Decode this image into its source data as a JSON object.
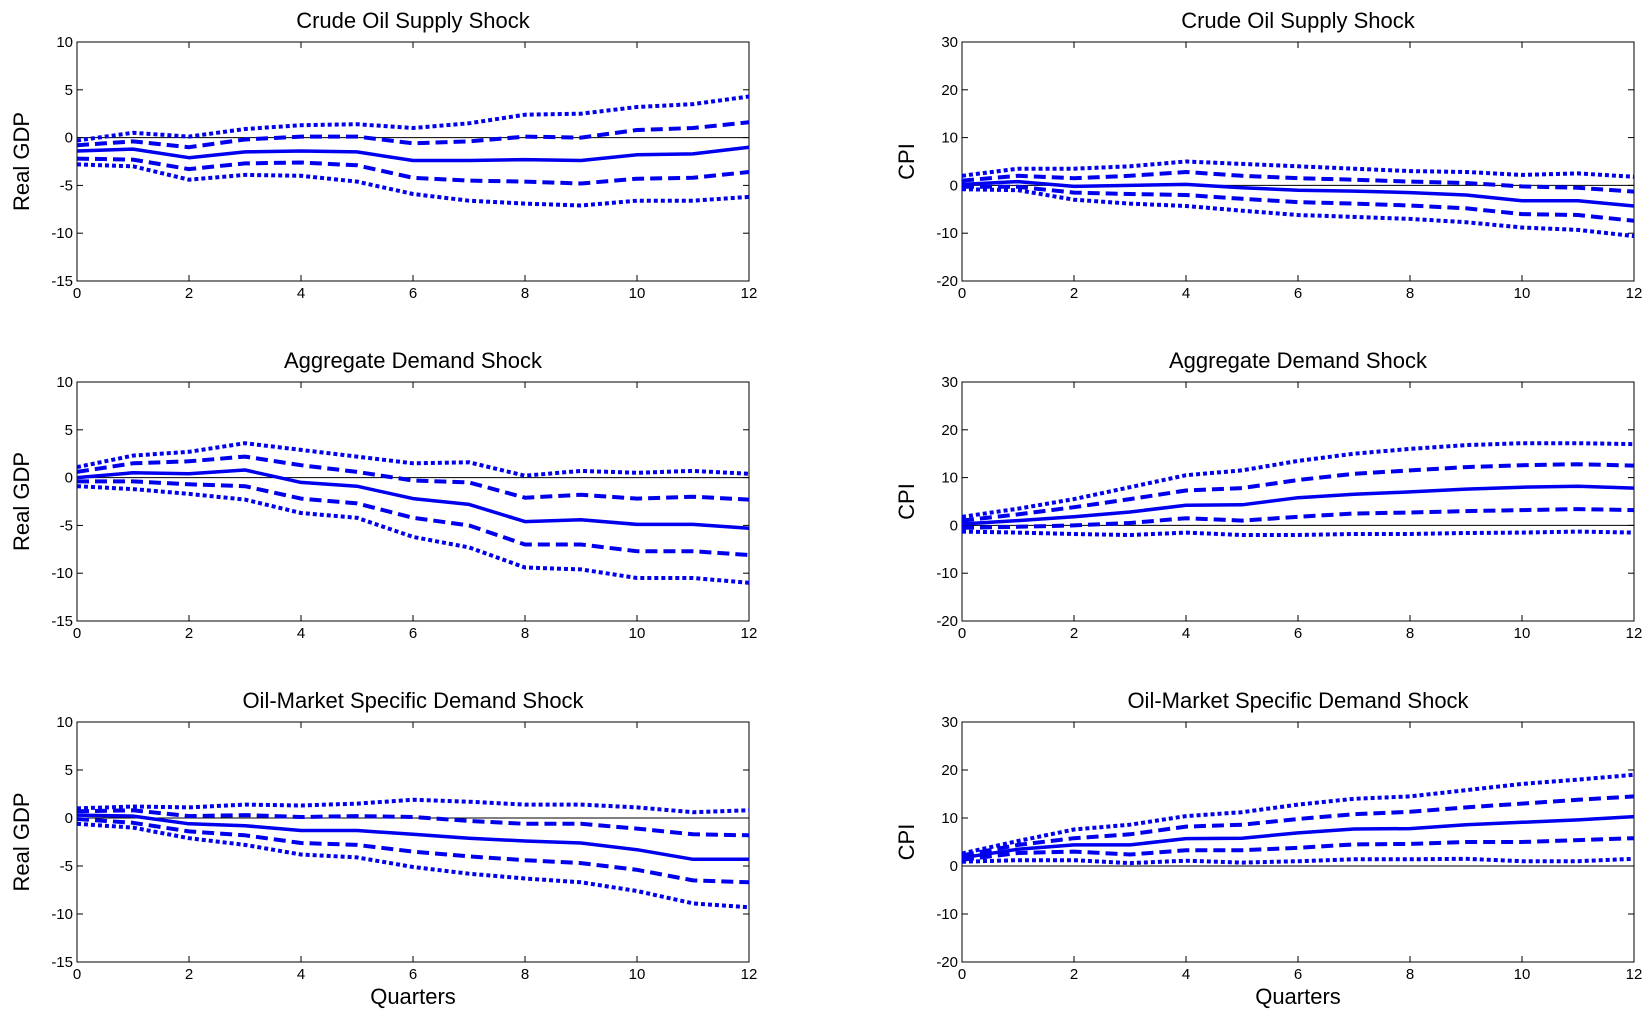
{
  "figure": {
    "xlabel": "Quarters"
  },
  "style": {
    "line_color": "#0000ee",
    "zero_line_color": "#000000",
    "axes_color": "#000000"
  },
  "chart_data": [
    {
      "type": "line",
      "title": "Crude Oil Supply Shock",
      "xlabel": "",
      "ylabel": "Real GDP",
      "xlim": [
        0,
        12
      ],
      "ylim": [
        -15,
        10
      ],
      "xticks": [
        0,
        2,
        4,
        6,
        8,
        10,
        12
      ],
      "yticks": [
        10,
        5,
        0,
        -5,
        -10,
        -15
      ],
      "x": [
        0,
        1,
        2,
        3,
        4,
        5,
        6,
        7,
        8,
        9,
        10,
        11,
        12
      ],
      "series": [
        {
          "style": "dotted",
          "values": [
            -0.3,
            0.5,
            0.1,
            0.9,
            1.3,
            1.4,
            1.0,
            1.5,
            2.4,
            2.5,
            3.2,
            3.5,
            4.3
          ]
        },
        {
          "style": "dashed",
          "values": [
            -0.8,
            -0.4,
            -1.0,
            -0.2,
            0.1,
            0.1,
            -0.6,
            -0.4,
            0.1,
            0.0,
            0.8,
            1.0,
            1.6
          ]
        },
        {
          "style": "solid",
          "values": [
            -1.4,
            -1.2,
            -2.1,
            -1.5,
            -1.4,
            -1.5,
            -2.4,
            -2.4,
            -2.3,
            -2.4,
            -1.8,
            -1.7,
            -1.0
          ]
        },
        {
          "style": "dashed",
          "values": [
            -2.2,
            -2.3,
            -3.3,
            -2.7,
            -2.6,
            -2.9,
            -4.2,
            -4.5,
            -4.6,
            -4.8,
            -4.3,
            -4.2,
            -3.6
          ]
        },
        {
          "style": "dotted",
          "values": [
            -2.8,
            -3.0,
            -4.4,
            -3.9,
            -4.0,
            -4.6,
            -5.9,
            -6.6,
            -6.9,
            -7.1,
            -6.6,
            -6.6,
            -6.2
          ]
        }
      ]
    },
    {
      "type": "line",
      "title": "Crude Oil Supply Shock",
      "xlabel": "",
      "ylabel": "CPI",
      "xlim": [
        0,
        12
      ],
      "ylim": [
        -20,
        30
      ],
      "xticks": [
        0,
        2,
        4,
        6,
        8,
        10,
        12
      ],
      "yticks": [
        30,
        20,
        10,
        0,
        -10,
        -20
      ],
      "x": [
        0,
        1,
        2,
        3,
        4,
        5,
        6,
        7,
        8,
        9,
        10,
        11,
        12
      ],
      "series": [
        {
          "style": "dotted",
          "values": [
            2.0,
            3.5,
            3.5,
            4.0,
            5.0,
            4.5,
            4.0,
            3.5,
            3.0,
            2.8,
            2.2,
            2.5,
            1.8
          ]
        },
        {
          "style": "dashed",
          "values": [
            1.0,
            2.0,
            1.5,
            2.0,
            2.8,
            2.0,
            1.5,
            1.2,
            0.8,
            0.5,
            -0.2,
            -0.5,
            -1.3
          ]
        },
        {
          "style": "solid",
          "values": [
            0.2,
            0.8,
            -0.2,
            0.0,
            0.2,
            -0.5,
            -1.0,
            -1.2,
            -1.5,
            -2.0,
            -3.2,
            -3.2,
            -4.3
          ]
        },
        {
          "style": "dashed",
          "values": [
            -0.3,
            -0.3,
            -1.5,
            -1.8,
            -2.0,
            -2.8,
            -3.5,
            -3.8,
            -4.2,
            -4.8,
            -6.0,
            -6.2,
            -7.4
          ]
        },
        {
          "style": "dotted",
          "values": [
            -0.8,
            -1.0,
            -3.0,
            -3.8,
            -4.3,
            -5.3,
            -6.2,
            -6.6,
            -7.0,
            -7.7,
            -8.8,
            -9.3,
            -10.6
          ]
        }
      ]
    },
    {
      "type": "line",
      "title": "Aggregate Demand Shock",
      "xlabel": "",
      "ylabel": "Real GDP",
      "xlim": [
        0,
        12
      ],
      "ylim": [
        -15,
        10
      ],
      "xticks": [
        0,
        2,
        4,
        6,
        8,
        10,
        12
      ],
      "yticks": [
        10,
        5,
        0,
        -5,
        -10,
        -15
      ],
      "x": [
        0,
        1,
        2,
        3,
        4,
        5,
        6,
        7,
        8,
        9,
        10,
        11,
        12
      ],
      "series": [
        {
          "style": "dotted",
          "values": [
            1.1,
            2.3,
            2.7,
            3.6,
            2.9,
            2.2,
            1.5,
            1.6,
            0.2,
            0.7,
            0.5,
            0.7,
            0.4
          ]
        },
        {
          "style": "dashed",
          "values": [
            0.6,
            1.5,
            1.7,
            2.2,
            1.3,
            0.6,
            -0.3,
            -0.5,
            -2.1,
            -1.8,
            -2.2,
            -2.0,
            -2.3
          ]
        },
        {
          "style": "solid",
          "values": [
            0.0,
            0.5,
            0.4,
            0.8,
            -0.5,
            -0.9,
            -2.2,
            -2.8,
            -4.6,
            -4.4,
            -4.9,
            -4.9,
            -5.3
          ]
        },
        {
          "style": "dashed",
          "values": [
            -0.4,
            -0.4,
            -0.7,
            -0.9,
            -2.2,
            -2.7,
            -4.2,
            -5.0,
            -7.0,
            -7.0,
            -7.7,
            -7.7,
            -8.1
          ]
        },
        {
          "style": "dotted",
          "values": [
            -0.9,
            -1.2,
            -1.7,
            -2.3,
            -3.7,
            -4.2,
            -6.2,
            -7.3,
            -9.4,
            -9.6,
            -10.5,
            -10.5,
            -11.0
          ]
        }
      ]
    },
    {
      "type": "line",
      "title": "Aggregate Demand Shock",
      "xlabel": "",
      "ylabel": "CPI",
      "xlim": [
        0,
        12
      ],
      "ylim": [
        -20,
        30
      ],
      "xticks": [
        0,
        2,
        4,
        6,
        8,
        10,
        12
      ],
      "yticks": [
        30,
        20,
        10,
        0,
        -10,
        -20
      ],
      "x": [
        0,
        1,
        2,
        3,
        4,
        5,
        6,
        7,
        8,
        9,
        10,
        11,
        12
      ],
      "series": [
        {
          "style": "dotted",
          "values": [
            1.8,
            3.5,
            5.5,
            8.0,
            10.5,
            11.5,
            13.5,
            15.0,
            16.0,
            16.8,
            17.2,
            17.2,
            17.0
          ]
        },
        {
          "style": "dashed",
          "values": [
            1.0,
            2.3,
            3.8,
            5.5,
            7.3,
            7.8,
            9.5,
            10.8,
            11.5,
            12.2,
            12.6,
            12.8,
            12.5
          ]
        },
        {
          "style": "solid",
          "values": [
            0.3,
            1.0,
            1.8,
            2.8,
            4.2,
            4.3,
            5.8,
            6.5,
            7.0,
            7.6,
            8.0,
            8.2,
            7.8
          ]
        },
        {
          "style": "dashed",
          "values": [
            -0.5,
            -0.3,
            0.0,
            0.5,
            1.5,
            1.0,
            1.8,
            2.5,
            2.7,
            3.0,
            3.2,
            3.4,
            3.2
          ]
        },
        {
          "style": "dotted",
          "values": [
            -1.3,
            -1.5,
            -1.8,
            -2.0,
            -1.5,
            -2.0,
            -2.0,
            -1.8,
            -1.8,
            -1.6,
            -1.5,
            -1.3,
            -1.5
          ]
        }
      ]
    },
    {
      "type": "line",
      "title": "Oil-Market Specific Demand Shock",
      "xlabel": "Quarters",
      "ylabel": "Real GDP",
      "xlim": [
        0,
        12
      ],
      "ylim": [
        -15,
        10
      ],
      "xticks": [
        0,
        2,
        4,
        6,
        8,
        10,
        12
      ],
      "yticks": [
        10,
        5,
        0,
        -5,
        -10,
        -15
      ],
      "x": [
        0,
        1,
        2,
        3,
        4,
        5,
        6,
        7,
        8,
        9,
        10,
        11,
        12
      ],
      "series": [
        {
          "style": "dotted",
          "values": [
            1.0,
            1.2,
            1.1,
            1.4,
            1.3,
            1.5,
            1.9,
            1.7,
            1.4,
            1.4,
            1.1,
            0.6,
            0.8
          ]
        },
        {
          "style": "dashed",
          "values": [
            0.7,
            0.8,
            0.2,
            0.3,
            0.1,
            0.2,
            0.1,
            -0.3,
            -0.6,
            -0.6,
            -1.1,
            -1.7,
            -1.8
          ]
        },
        {
          "style": "solid",
          "values": [
            0.3,
            0.2,
            -0.6,
            -0.8,
            -1.3,
            -1.3,
            -1.7,
            -2.1,
            -2.4,
            -2.6,
            -3.3,
            -4.3,
            -4.3
          ]
        },
        {
          "style": "dashed",
          "values": [
            -0.1,
            -0.5,
            -1.4,
            -1.8,
            -2.6,
            -2.8,
            -3.5,
            -4.0,
            -4.4,
            -4.7,
            -5.4,
            -6.5,
            -6.7
          ]
        },
        {
          "style": "dotted",
          "values": [
            -0.6,
            -1.0,
            -2.1,
            -2.8,
            -3.8,
            -4.1,
            -5.1,
            -5.8,
            -6.3,
            -6.7,
            -7.6,
            -8.9,
            -9.3
          ]
        }
      ]
    },
    {
      "type": "line",
      "title": "Oil-Market Specific Demand Shock",
      "xlabel": "Quarters",
      "ylabel": "CPI",
      "xlim": [
        0,
        12
      ],
      "ylim": [
        -20,
        30
      ],
      "xticks": [
        0,
        2,
        4,
        6,
        8,
        10,
        12
      ],
      "yticks": [
        30,
        20,
        10,
        0,
        -10,
        -20
      ],
      "x": [
        0,
        1,
        2,
        3,
        4,
        5,
        6,
        7,
        8,
        9,
        10,
        11,
        12
      ],
      "series": [
        {
          "style": "dotted",
          "values": [
            2.6,
            5.2,
            7.6,
            8.6,
            10.4,
            11.2,
            12.8,
            14.0,
            14.5,
            15.8,
            17.1,
            18.0,
            19.0
          ]
        },
        {
          "style": "dashed",
          "values": [
            2.2,
            4.4,
            5.8,
            6.6,
            8.2,
            8.6,
            9.8,
            10.8,
            11.3,
            12.2,
            13.0,
            13.8,
            14.5
          ]
        },
        {
          "style": "solid",
          "values": [
            1.7,
            3.5,
            4.4,
            4.4,
            5.7,
            5.8,
            6.9,
            7.7,
            7.8,
            8.6,
            9.1,
            9.6,
            10.3
          ]
        },
        {
          "style": "dashed",
          "values": [
            1.3,
            2.7,
            3.0,
            2.4,
            3.3,
            3.3,
            3.8,
            4.5,
            4.6,
            5.0,
            5.0,
            5.4,
            5.8
          ]
        },
        {
          "style": "dotted",
          "values": [
            0.9,
            1.2,
            1.2,
            0.6,
            1.1,
            0.7,
            1.0,
            1.4,
            1.4,
            1.5,
            1.0,
            1.0,
            1.5
          ]
        }
      ]
    }
  ]
}
